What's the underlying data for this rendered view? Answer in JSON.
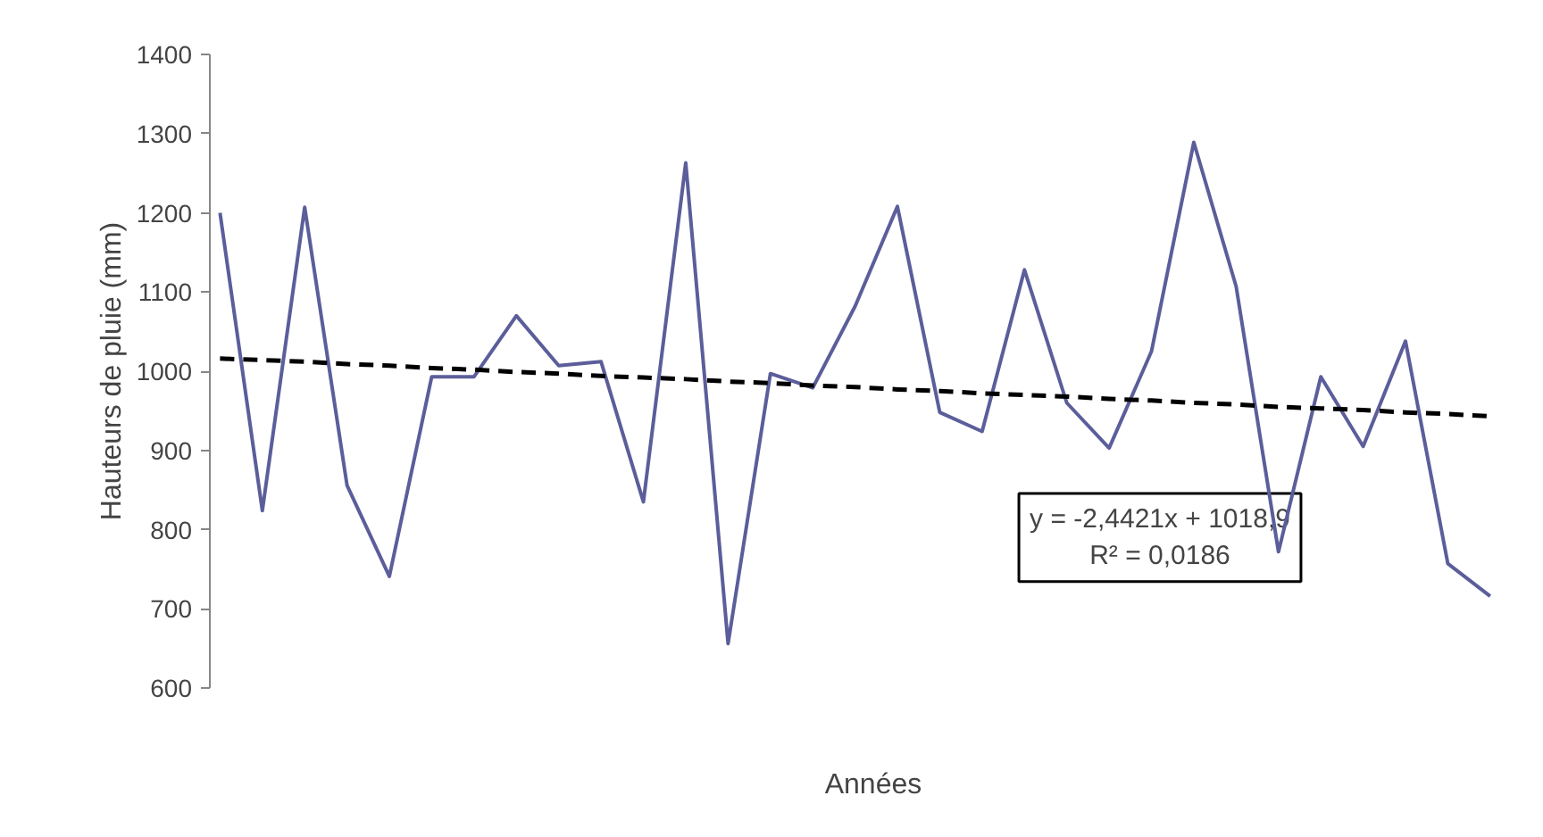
{
  "chart_data": {
    "type": "line",
    "xlabel": "Années",
    "ylabel": "Hauteurs de pluie (mm)",
    "categories": [
      null,
      null,
      null,
      null,
      null,
      null,
      null,
      null,
      null,
      null,
      null,
      null,
      null,
      null,
      null,
      null,
      null,
      null,
      null,
      null,
      null,
      null,
      null,
      null,
      null,
      null,
      null,
      null,
      null,
      null,
      null
    ],
    "ylim": [
      600,
      1400
    ],
    "yticks": [
      600,
      700,
      800,
      900,
      1000,
      1100,
      1200,
      1300,
      1400
    ],
    "tick_labels": "y",
    "grid": false,
    "marker": "none",
    "line_style": "solid",
    "series": [
      {
        "color": "#5b5e9a",
        "values": [
          1200,
          824,
          1207,
          856,
          741,
          993,
          993,
          1070,
          1007,
          1012,
          835,
          1263,
          656,
          997,
          979,
          1082,
          1208,
          948,
          924,
          1128,
          960,
          903,
          1025,
          1289,
          1107,
          772,
          993,
          905,
          1038,
          757,
          716
        ]
      },
      {
        "type": "line",
        "color": "#000000",
        "line_style": "dashed",
        "values": [
          1016,
          1014,
          1012,
          1009,
          1007,
          1004,
          1002,
          999,
          997,
          994,
          992,
          990,
          987,
          985,
          982,
          980,
          977,
          975,
          972,
          970,
          968,
          965,
          963,
          960,
          958,
          955,
          953,
          951,
          948,
          946,
          943
        ]
      }
    ],
    "annotations": [
      "y = -2,4421x + 1018,9",
      "R² = 0,0186"
    ]
  }
}
